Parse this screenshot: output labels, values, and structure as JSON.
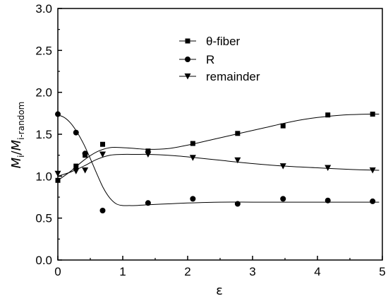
{
  "chart_data": {
    "type": "scatter",
    "xlabel": "ε",
    "ylabel_main": "M",
    "ylabel_sub1": "i",
    "ylabel_slash": "/",
    "ylabel_main2": "M",
    "ylabel_sub2": "i-random",
    "xlim": [
      0,
      5
    ],
    "ylim": [
      0.0,
      3.0
    ],
    "xticks": [
      "0",
      "1",
      "2",
      "3",
      "4",
      "5"
    ],
    "yticks": [
      "0.0",
      "0.5",
      "1.0",
      "1.5",
      "2.0",
      "2.5",
      "3.0"
    ],
    "grid": false,
    "legend_position": "top-center",
    "series": [
      {
        "name": "θ-fiber",
        "marker": "square",
        "x": [
          0.0,
          0.28,
          0.42,
          0.69,
          1.39,
          2.08,
          2.77,
          3.47,
          4.16,
          4.85
        ],
        "y": [
          0.95,
          1.12,
          1.25,
          1.38,
          1.3,
          1.39,
          1.51,
          1.6,
          1.73,
          1.74
        ],
        "fit_x": [
          0.0,
          0.2,
          0.4,
          0.6,
          0.8,
          1.0,
          1.2,
          1.4,
          1.7,
          2.0,
          2.4,
          2.8,
          3.2,
          3.6,
          4.0,
          4.4,
          4.8,
          4.95
        ],
        "fit_y": [
          0.95,
          1.06,
          1.19,
          1.29,
          1.34,
          1.34,
          1.33,
          1.32,
          1.33,
          1.37,
          1.44,
          1.51,
          1.58,
          1.65,
          1.7,
          1.73,
          1.74,
          1.74
        ]
      },
      {
        "name": "R",
        "marker": "circle",
        "x": [
          0.0,
          0.28,
          0.42,
          0.69,
          1.39,
          2.08,
          2.77,
          3.47,
          4.16,
          4.85
        ],
        "y": [
          1.74,
          1.52,
          1.27,
          0.59,
          0.68,
          0.73,
          0.67,
          0.73,
          0.71,
          0.7
        ],
        "fit_x": [
          0.0,
          0.1,
          0.2,
          0.3,
          0.4,
          0.5,
          0.6,
          0.7,
          0.8,
          0.9,
          1.0,
          1.1,
          1.2,
          1.4,
          1.7,
          2.0,
          2.5,
          3.0,
          3.5,
          4.0,
          4.5,
          4.95
        ],
        "fit_y": [
          1.73,
          1.7,
          1.63,
          1.52,
          1.38,
          1.21,
          1.03,
          0.86,
          0.74,
          0.67,
          0.65,
          0.65,
          0.65,
          0.66,
          0.67,
          0.68,
          0.69,
          0.69,
          0.69,
          0.69,
          0.69,
          0.69
        ]
      },
      {
        "name": "remainder",
        "marker": "triangle-down",
        "x": [
          0.0,
          0.28,
          0.42,
          0.69,
          1.39,
          2.08,
          2.77,
          3.47,
          4.16,
          4.85
        ],
        "y": [
          1.03,
          1.06,
          1.07,
          1.26,
          1.26,
          1.22,
          1.19,
          1.12,
          1.1,
          1.07
        ],
        "fit_x": [
          0.0,
          0.2,
          0.4,
          0.6,
          0.8,
          1.0,
          1.2,
          1.4,
          1.7,
          2.0,
          2.5,
          3.0,
          3.5,
          4.0,
          4.5,
          4.95
        ],
        "fit_y": [
          1.0,
          1.05,
          1.12,
          1.2,
          1.25,
          1.26,
          1.26,
          1.26,
          1.25,
          1.23,
          1.19,
          1.15,
          1.12,
          1.1,
          1.08,
          1.07
        ]
      }
    ]
  }
}
